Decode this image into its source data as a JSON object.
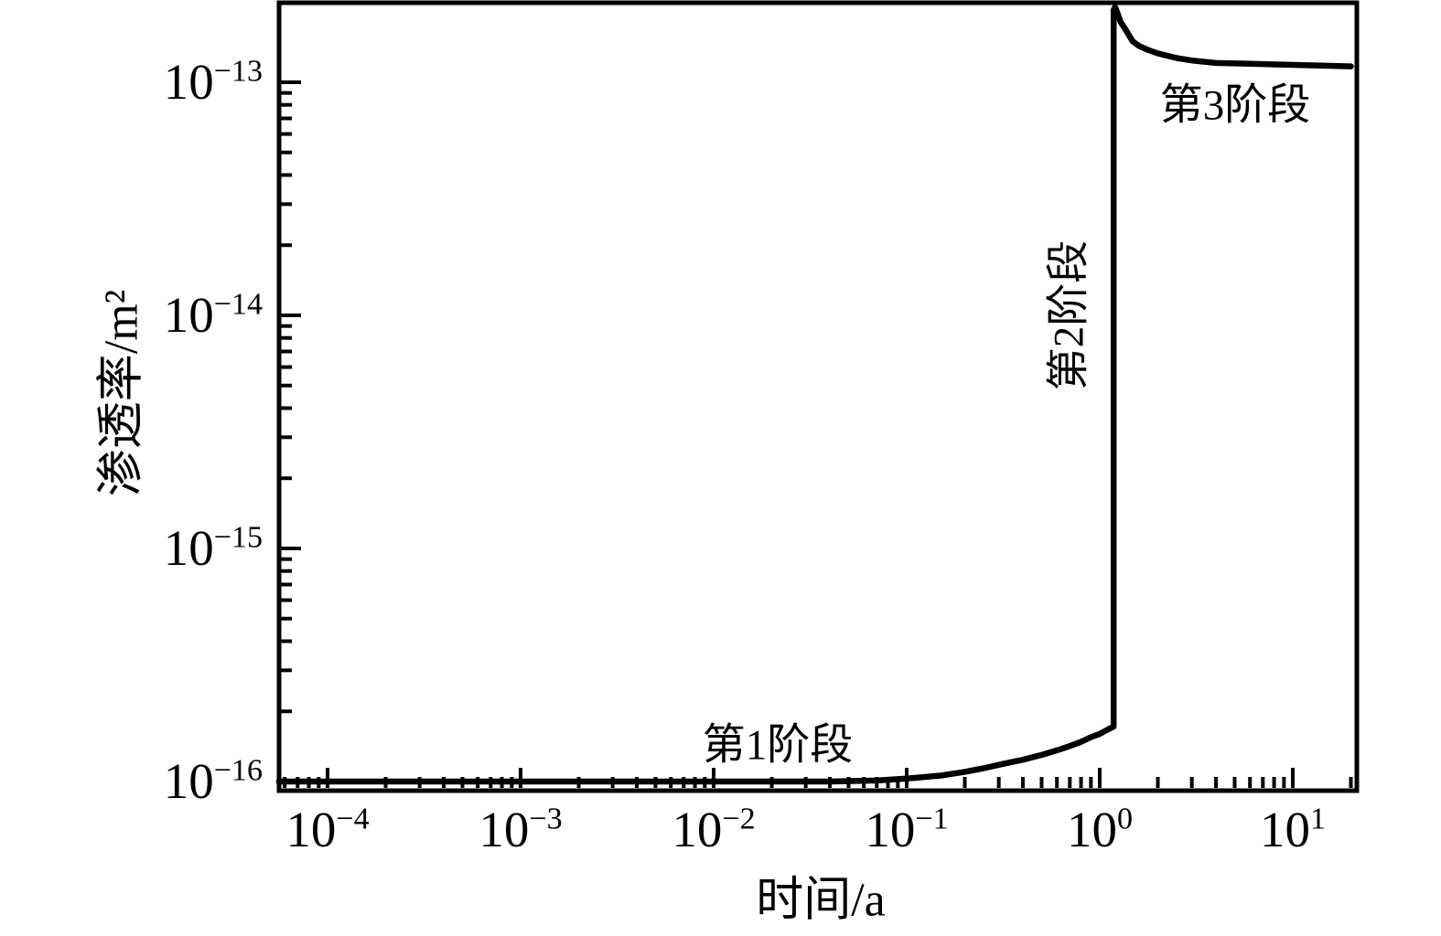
{
  "figure": {
    "background": "#ffffff",
    "line_color": "#000000"
  },
  "chart_data": {
    "type": "line",
    "title": "",
    "grid": false,
    "legend": false,
    "x_axis": {
      "label": "时间/a",
      "scale": "log",
      "range": [
        5.6e-05,
        21.5
      ],
      "tick_base": "10",
      "tick_exponents": [
        "−4",
        "−3",
        "−2",
        "−1",
        "0",
        "1"
      ],
      "major_exponents": [
        -4,
        -3,
        -2,
        -1,
        0,
        1
      ]
    },
    "y_axis": {
      "label": "渗透率/m²",
      "scale": "log",
      "range": [
        9.1e-17,
        2.2e-13
      ],
      "tick_base": "10",
      "tick_exponents": [
        "−13",
        "−14",
        "−15",
        "−16"
      ],
      "major_exponents": [
        -16,
        -15,
        -14,
        -13
      ]
    },
    "annotations": [
      {
        "text": "第1阶段",
        "x": 0.02,
        "y": 2.2e-16,
        "rotated": false
      },
      {
        "text": "第2阶段",
        "x": 0.85,
        "y": 2e-15,
        "rotated": true
      },
      {
        "text": "第3阶段",
        "x": 5.0,
        "y": 7.5e-14,
        "rotated": false
      }
    ],
    "series": [
      {
        "name": "permeability",
        "color": "#000000",
        "points": [
          [
            5.6e-05,
            1e-16
          ],
          [
            0.0001,
            1e-16
          ],
          [
            0.001,
            1e-16
          ],
          [
            0.01,
            1e-16
          ],
          [
            0.04,
            1e-16
          ],
          [
            0.07,
            1.01e-16
          ],
          [
            0.1,
            1.03e-16
          ],
          [
            0.15,
            1.06e-16
          ],
          [
            0.2,
            1.1e-16
          ],
          [
            0.25,
            1.14e-16
          ],
          [
            0.33,
            1.2e-16
          ],
          [
            0.4,
            1.24e-16
          ],
          [
            0.5,
            1.3e-16
          ],
          [
            0.6,
            1.36e-16
          ],
          [
            0.7,
            1.42e-16
          ],
          [
            0.8,
            1.48e-16
          ],
          [
            0.9,
            1.55e-16
          ],
          [
            1.0,
            1.6e-16
          ],
          [
            1.1,
            1.67e-16
          ],
          [
            1.18,
            1.72e-16
          ],
          [
            1.18,
            2.04e-13
          ],
          [
            1.2,
            2.1e-13
          ],
          [
            1.23,
            2e-13
          ],
          [
            1.28,
            1.82e-13
          ],
          [
            1.35,
            1.7e-13
          ],
          [
            1.48,
            1.5e-13
          ],
          [
            1.6,
            1.43e-13
          ],
          [
            1.8,
            1.37e-13
          ],
          [
            2.0,
            1.33e-13
          ],
          [
            2.5,
            1.27e-13
          ],
          [
            3.0,
            1.24e-13
          ],
          [
            4.0,
            1.21e-13
          ],
          [
            6.0,
            1.2e-13
          ],
          [
            9.0,
            1.19e-13
          ],
          [
            14.0,
            1.18e-13
          ],
          [
            20.0,
            1.17e-13
          ]
        ]
      }
    ]
  }
}
